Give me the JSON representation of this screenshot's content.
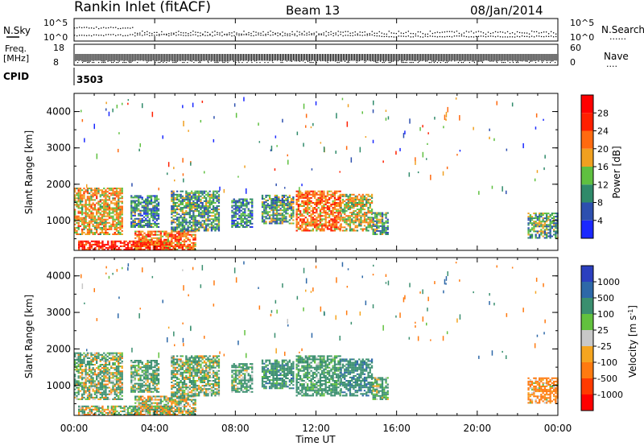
{
  "header": {
    "site": "Rankin Inlet (fitACF)",
    "beam": "Beam 13",
    "date": "08/Jan/2014"
  },
  "noise_panel": {
    "left_label": "N.Sky",
    "right_label": "N.Search",
    "right_legend": "......",
    "left_ticks": [
      "10^5",
      "10^0"
    ],
    "right_ticks": [
      "10^5",
      "10^0"
    ]
  },
  "freq_panel": {
    "label_line1": "Freq.",
    "label_line2": "[MHz]",
    "left_ticks": [
      "18",
      "8"
    ],
    "right_label": "Nave",
    "right_legend": "....",
    "right_ticks": [
      "60",
      "0"
    ]
  },
  "cpid": {
    "label": "CPID",
    "value": "3503"
  },
  "power_panel": {
    "ylabel": "Slant Range [km]",
    "yticks": [
      "1000",
      "2000",
      "3000",
      "4000"
    ],
    "colorbar_label": "Power [dB]",
    "colorbar_ticks": [
      "4",
      "8",
      "12",
      "16",
      "20",
      "24",
      "28"
    ],
    "colorbar_colors": [
      "#1a28ff",
      "#2d4faf",
      "#2f8a6a",
      "#5fc040",
      "#f0a020",
      "#ff6a10",
      "#ff2000",
      "#ff0000"
    ]
  },
  "velocity_panel": {
    "ylabel": "Slant Range [km]",
    "yticks": [
      "1000",
      "2000",
      "3000",
      "4000"
    ],
    "colorbar_label": "Velocity [m s^-1]",
    "colorbar_ticks": [
      "1000",
      "500",
      "100",
      "25",
      "-25",
      "-100",
      "-500",
      "-1000"
    ],
    "colorbar_colors": [
      "#2b3fbf",
      "#2d68a8",
      "#3a8f6f",
      "#62c13e",
      "#c8c8c8",
      "#f5a520",
      "#ff7a10",
      "#ff3a00",
      "#ff0000"
    ]
  },
  "xaxis": {
    "label": "Time UT",
    "ticks": [
      "00:00",
      "04:00",
      "08:00",
      "12:00",
      "16:00",
      "20:00",
      "00:00"
    ]
  },
  "chart_data": {
    "type": "heatmap",
    "title": "Rankin Inlet (fitACF)",
    "x_range_hours": [
      0,
      24
    ],
    "y_range_km": [
      180,
      4500
    ],
    "power_range_db": [
      0,
      32
    ],
    "velocity_range_ms": [
      -1200,
      1200
    ],
    "echo_regions": [
      {
        "t_start": 0.0,
        "t_end": 2.4,
        "r_min": 600,
        "r_max": 1900,
        "power": 18,
        "velocity": 100
      },
      {
        "t_start": 0.2,
        "t_end": 4.8,
        "r_min": 180,
        "r_max": 450,
        "power": 28,
        "velocity": 60
      },
      {
        "t_start": 3.0,
        "t_end": 6.0,
        "r_min": 180,
        "r_max": 700,
        "power": 22,
        "velocity": 40
      },
      {
        "t_start": 2.8,
        "t_end": 4.2,
        "r_min": 800,
        "r_max": 1700,
        "power": 10,
        "velocity": 150
      },
      {
        "t_start": 4.8,
        "t_end": 7.2,
        "r_min": 700,
        "r_max": 1800,
        "power": 11,
        "velocity": 120
      },
      {
        "t_start": 7.8,
        "t_end": 8.8,
        "r_min": 800,
        "r_max": 1600,
        "power": 9,
        "velocity": 200
      },
      {
        "t_start": 9.3,
        "t_end": 10.9,
        "r_min": 900,
        "r_max": 1700,
        "power": 12,
        "velocity": 300
      },
      {
        "t_start": 11.0,
        "t_end": 13.2,
        "r_min": 700,
        "r_max": 1800,
        "power": 22,
        "velocity": 250
      },
      {
        "t_start": 13.2,
        "t_end": 14.8,
        "r_min": 700,
        "r_max": 1700,
        "power": 16,
        "velocity": 350
      },
      {
        "t_start": 14.8,
        "t_end": 15.6,
        "r_min": 600,
        "r_max": 1200,
        "power": 12,
        "velocity": 150
      },
      {
        "t_start": 22.5,
        "t_end": 24.0,
        "r_min": 500,
        "r_max": 1200,
        "power": 12,
        "velocity": -200
      }
    ]
  }
}
